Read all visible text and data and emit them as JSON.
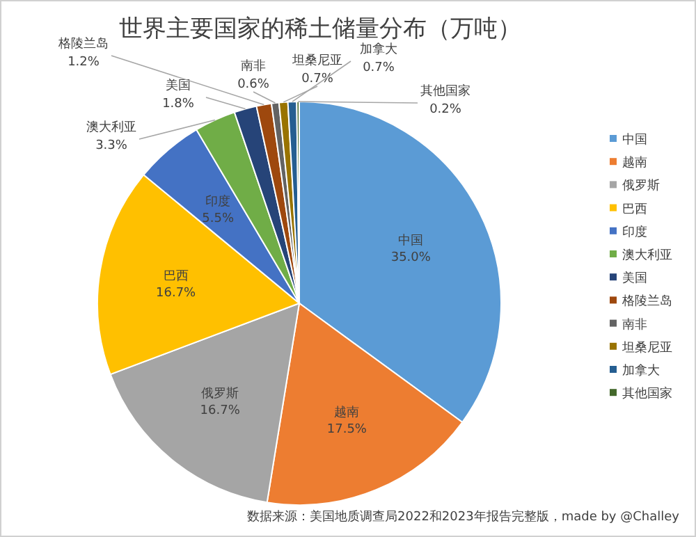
{
  "chart_data": {
    "type": "pie",
    "title": "世界主要国家的稀土储量分布（万吨）",
    "categories": [
      "中国",
      "越南",
      "俄罗斯",
      "巴西",
      "印度",
      "澳大利亚",
      "美国",
      "格陵兰岛",
      "南非",
      "坦桑尼亚",
      "加拿大",
      "其他国家"
    ],
    "values": [
      35.0,
      17.5,
      16.7,
      16.7,
      5.5,
      3.3,
      1.8,
      1.2,
      0.6,
      0.7,
      0.7,
      0.2
    ],
    "colors": [
      "#5b9bd5",
      "#ed7d31",
      "#a5a5a5",
      "#ffc000",
      "#4472c4",
      "#70ad47",
      "#264478",
      "#9e480e",
      "#636363",
      "#997300",
      "#255e91",
      "#43682b"
    ],
    "value_labels": [
      "35.0%",
      "17.5%",
      "16.7%",
      "16.7%",
      "5.5%",
      "3.3%",
      "1.8%",
      "1.2%",
      "0.6%",
      "0.7%",
      "0.7%",
      "0.2%"
    ],
    "legend": "right",
    "annotations": [
      "数据来源：美国地质调查局2022和2023年报告完整版，made by @Challey"
    ]
  }
}
